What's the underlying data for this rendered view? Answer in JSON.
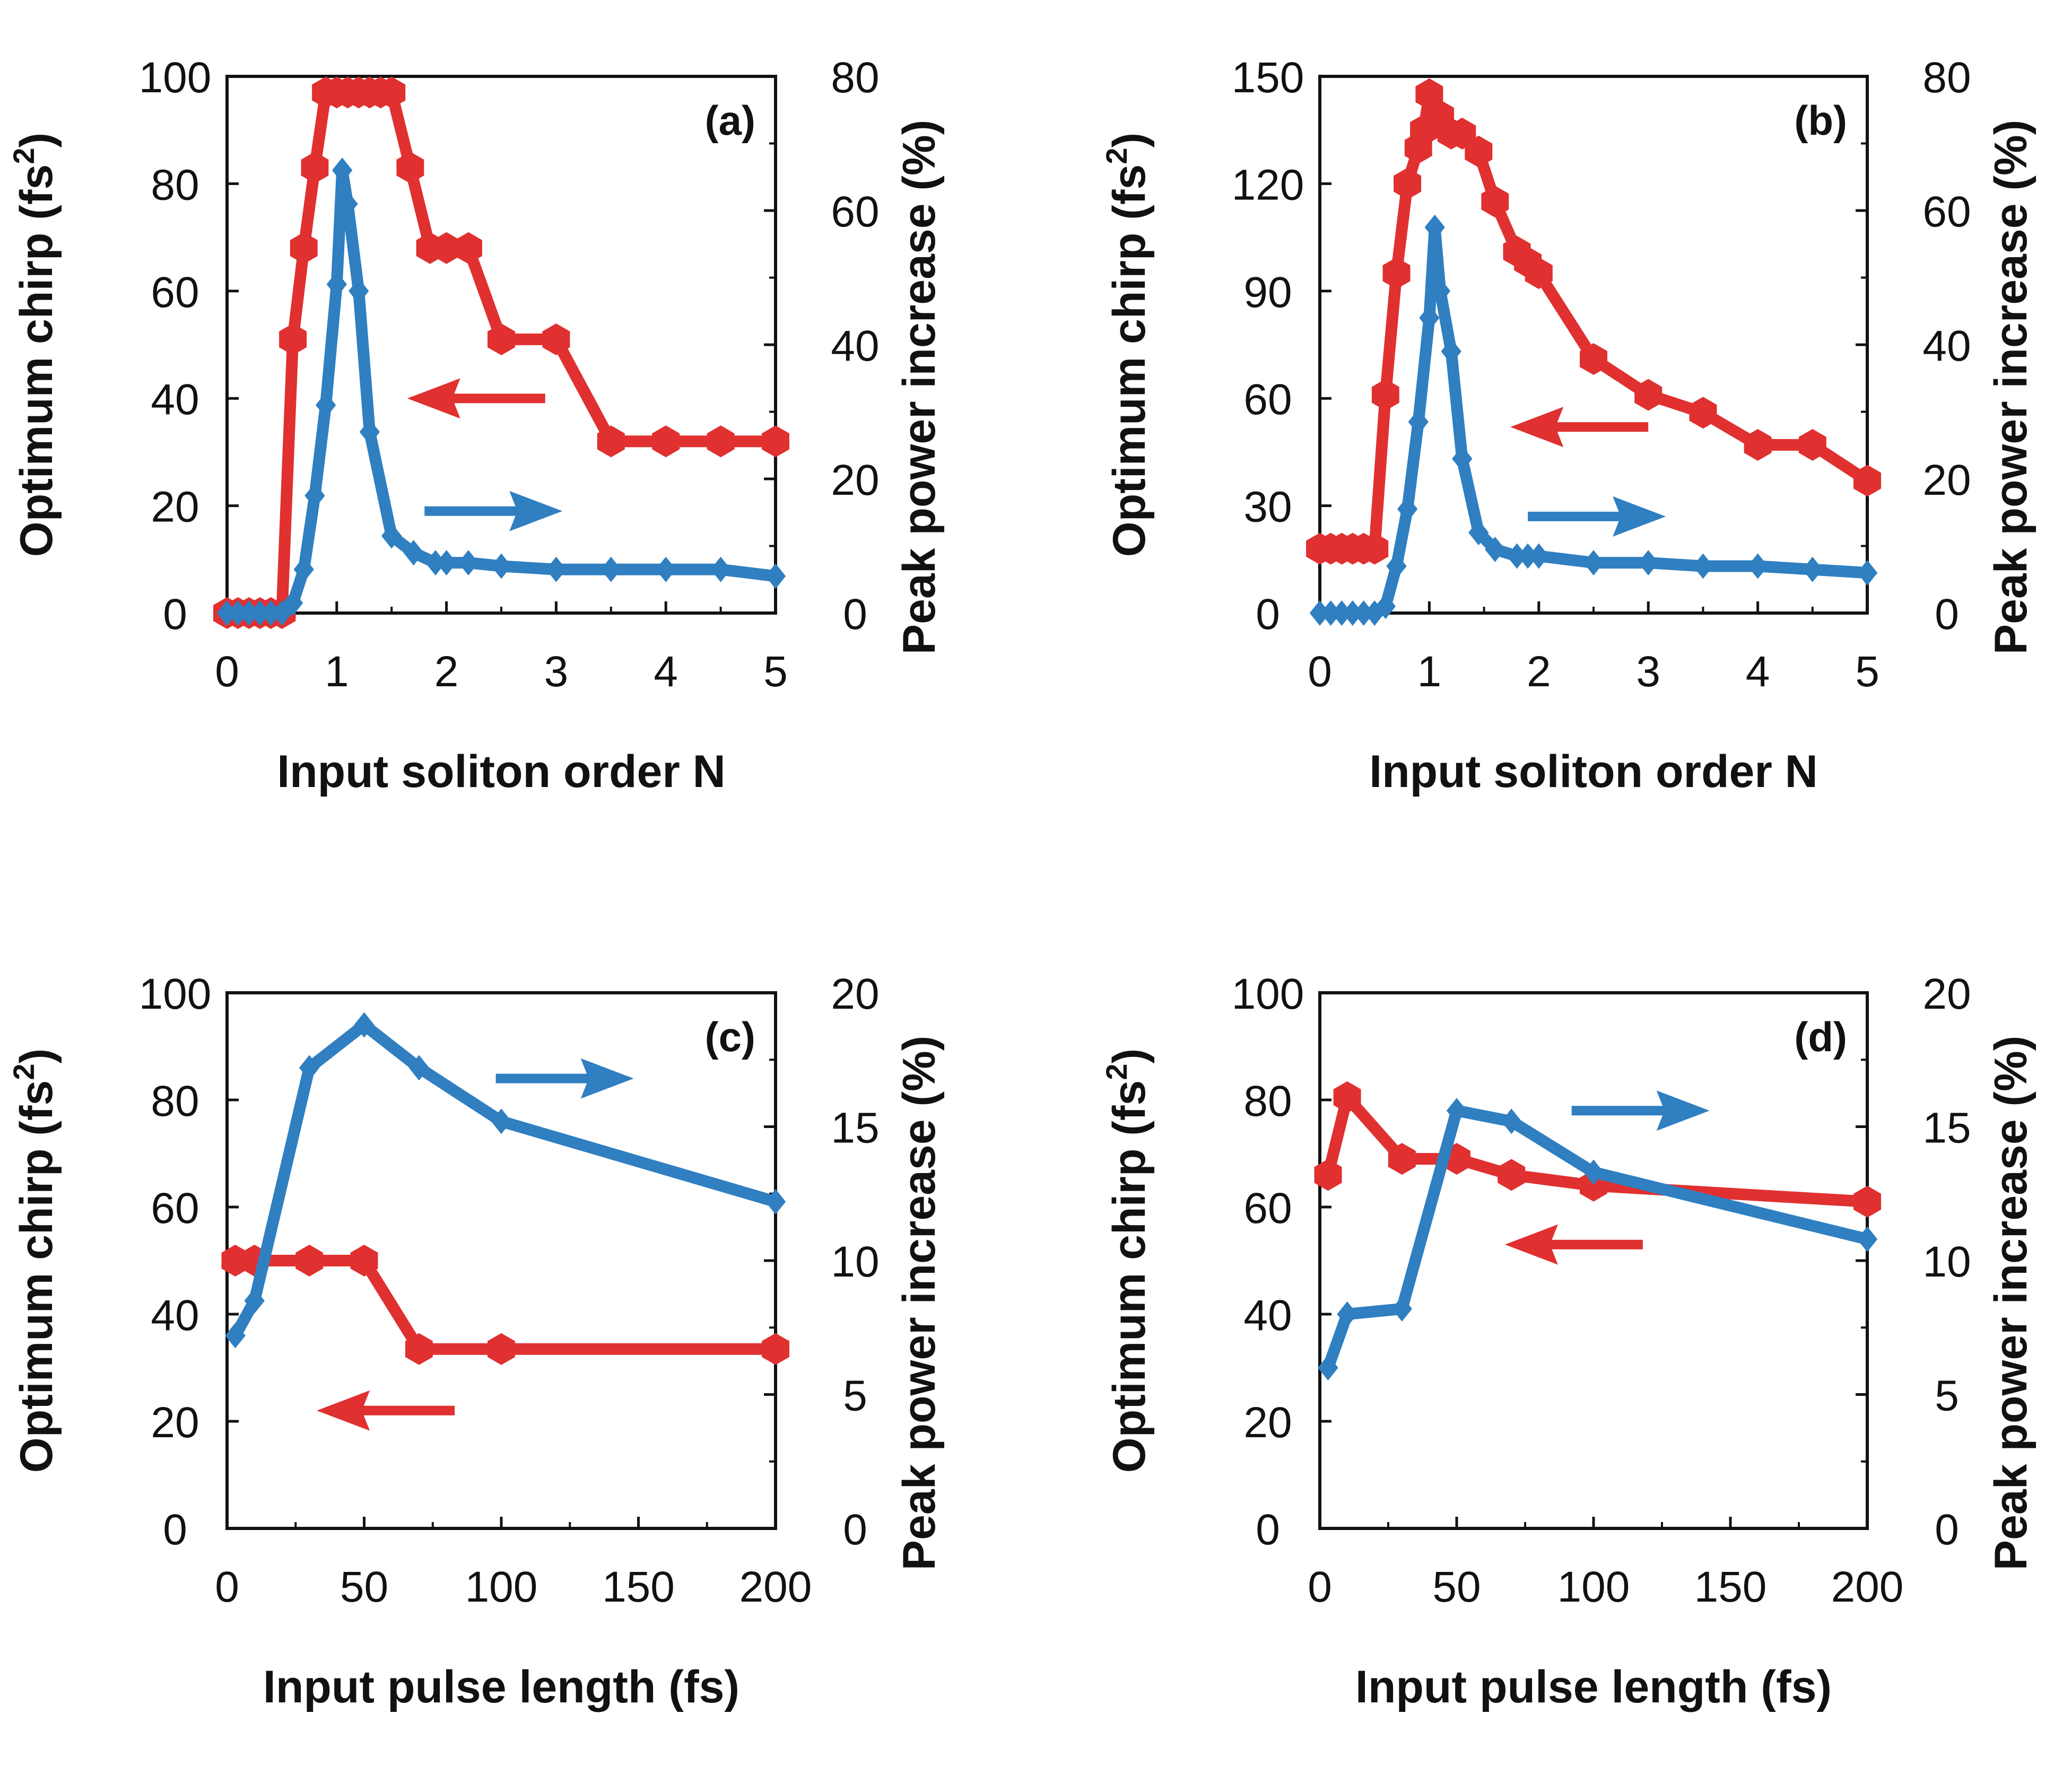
{
  "colors": {
    "red": "#e03030",
    "blue": "#2f7fc1",
    "axis": "#111111"
  },
  "chart_data": [
    {
      "type": "line",
      "panel_label": "(a)",
      "xlabel": "Input soliton order N",
      "ylabel": "Optimum chirp (fs2)",
      "ylabel_parts": {
        "main": "Optimum chirp (fs",
        "sup": "2",
        "close": ")"
      },
      "y2label": "Peak power increase (%)",
      "xlim": [
        0,
        5
      ],
      "xticks": [
        0,
        1,
        2,
        3,
        4,
        5
      ],
      "ylim": [
        0,
        100
      ],
      "yticks": [
        0,
        20,
        40,
        60,
        80,
        100
      ],
      "y2lim": [
        0,
        80
      ],
      "y2ticks": [
        0,
        20,
        40,
        60,
        80
      ],
      "series": [
        {
          "name": "Optimum chirp",
          "axis": "left",
          "color": "#e03030",
          "marker": "hexagon",
          "x": [
            0.0,
            0.1,
            0.2,
            0.3,
            0.4,
            0.5,
            0.6,
            0.7,
            0.8,
            0.9,
            1.0,
            1.1,
            1.2,
            1.3,
            1.4,
            1.5,
            1.67,
            1.85,
            2.0,
            2.2,
            2.5,
            3.0,
            3.5,
            4.0,
            4.5,
            5.0
          ],
          "y": [
            0,
            0,
            0,
            0,
            0,
            0,
            51,
            68,
            83,
            97,
            97,
            97,
            97,
            97,
            97,
            97,
            83,
            68,
            68,
            68,
            51,
            51,
            32,
            32,
            32,
            32
          ]
        },
        {
          "name": "Peak power increase",
          "axis": "right",
          "color": "#2f7fc1",
          "marker": "diamond",
          "x": [
            0.0,
            0.1,
            0.2,
            0.3,
            0.4,
            0.5,
            0.6,
            0.7,
            0.8,
            0.9,
            1.0,
            1.05,
            1.1,
            1.2,
            1.3,
            1.5,
            1.7,
            1.9,
            2.0,
            2.2,
            2.5,
            3.0,
            3.5,
            4.0,
            4.5,
            5.0
          ],
          "y": [
            0,
            0,
            0,
            0,
            0,
            0,
            1.5,
            6.5,
            17.5,
            31,
            49,
            66,
            61,
            48,
            27,
            11.5,
            9,
            7.5,
            7.5,
            7.5,
            7,
            6.5,
            6.5,
            6.5,
            6.5,
            5.5
          ]
        }
      ],
      "annotations": [
        {
          "type": "arrow",
          "direction": "left",
          "color": "#e03030",
          "near_series": "Optimum chirp",
          "anchor_x": 2.9,
          "anchor_y_left": 40
        },
        {
          "type": "arrow",
          "direction": "right",
          "color": "#2f7fc1",
          "near_series": "Peak power increase",
          "anchor_x": 1.8,
          "anchor_y_left": 19
        }
      ]
    },
    {
      "type": "line",
      "panel_label": "(b)",
      "xlabel": "Input soliton order N",
      "ylabel": "Optimum chirp (fs2)",
      "ylabel_parts": {
        "main": "Optimum chirp (fs",
        "sup": "2",
        "close": ")"
      },
      "y2label": "Peak power increase (%)",
      "xlim": [
        0,
        5
      ],
      "xticks": [
        0,
        1,
        2,
        3,
        4,
        5
      ],
      "ylim": [
        0,
        150
      ],
      "yticks": [
        0,
        30,
        60,
        90,
        120,
        150
      ],
      "y2lim": [
        0,
        80
      ],
      "y2ticks": [
        0,
        20,
        40,
        60,
        80
      ],
      "series": [
        {
          "name": "Optimum chirp",
          "axis": "left",
          "color": "#e03030",
          "marker": "hexagon",
          "x": [
            0.0,
            0.1,
            0.2,
            0.3,
            0.4,
            0.5,
            0.6,
            0.7,
            0.8,
            0.9,
            0.95,
            1.0,
            1.1,
            1.2,
            1.3,
            1.45,
            1.6,
            1.8,
            1.9,
            2.0,
            2.5,
            3.0,
            3.5,
            4.0,
            4.5,
            5.0
          ],
          "y": [
            18,
            18,
            18,
            18,
            18,
            18,
            61,
            95,
            120,
            130,
            135,
            145,
            139,
            134,
            134,
            129,
            115,
            101,
            98,
            95,
            71,
            61,
            56,
            47,
            47,
            37
          ]
        },
        {
          "name": "Peak power increase",
          "axis": "right",
          "color": "#2f7fc1",
          "marker": "diamond",
          "x": [
            0.0,
            0.1,
            0.2,
            0.3,
            0.4,
            0.5,
            0.6,
            0.7,
            0.8,
            0.9,
            1.0,
            1.05,
            1.1,
            1.2,
            1.3,
            1.45,
            1.6,
            1.8,
            1.9,
            2.0,
            2.5,
            3.0,
            3.5,
            4.0,
            4.5,
            5.0
          ],
          "y": [
            0,
            0,
            0,
            0,
            0,
            0,
            1,
            7,
            15.5,
            28.5,
            44,
            57.5,
            48,
            39,
            23,
            12,
            9.5,
            8.5,
            8.5,
            8.5,
            7.5,
            7.5,
            7,
            7,
            6.5,
            6
          ]
        }
      ],
      "annotations": [
        {
          "type": "arrow",
          "direction": "left",
          "color": "#e03030",
          "near_series": "Optimum chirp",
          "anchor_x": 3.0,
          "anchor_y_left": 52
        },
        {
          "type": "arrow",
          "direction": "right",
          "color": "#2f7fc1",
          "near_series": "Peak power increase",
          "anchor_x": 1.9,
          "anchor_y_left": 27
        }
      ]
    },
    {
      "type": "line",
      "panel_label": "(c)",
      "xlabel": "Input pulse length (fs)",
      "ylabel": "Optimum chirp (fs2)",
      "ylabel_parts": {
        "main": "Optimum chirp (fs",
        "sup": "2",
        "close": ")"
      },
      "y2label": "Peak power increase (%)",
      "xlim": [
        0,
        200
      ],
      "xticks": [
        0,
        50,
        100,
        150,
        200
      ],
      "ylim": [
        0,
        100
      ],
      "yticks": [
        0,
        20,
        40,
        60,
        80,
        100
      ],
      "y2lim": [
        0,
        20
      ],
      "y2ticks": [
        0,
        5,
        10,
        15,
        20
      ],
      "series": [
        {
          "name": "Optimum chirp",
          "axis": "left",
          "color": "#e03030",
          "marker": "hexagon",
          "x": [
            3,
            10,
            30,
            50,
            70,
            100,
            200
          ],
          "y": [
            50,
            50,
            50,
            50,
            33.5,
            33.5,
            33.5
          ]
        },
        {
          "name": "Peak power increase",
          "axis": "right",
          "color": "#2f7fc1",
          "marker": "diamond",
          "x": [
            3,
            10,
            30,
            50,
            70,
            100,
            200
          ],
          "y": [
            7.2,
            8.5,
            17.2,
            18.8,
            17.2,
            15.2,
            12.2
          ]
        }
      ],
      "annotations": [
        {
          "type": "arrow",
          "direction": "left",
          "color": "#e03030",
          "near_series": "Optimum chirp",
          "anchor_x": 83,
          "anchor_y_left": 22
        },
        {
          "type": "arrow",
          "direction": "right",
          "color": "#2f7fc1",
          "near_series": "Peak power increase",
          "anchor_x": 98,
          "anchor_y_left": 84
        }
      ]
    },
    {
      "type": "line",
      "panel_label": "(d)",
      "xlabel": "Input pulse length (fs)",
      "ylabel": "Optimum chirp (fs2)",
      "ylabel_parts": {
        "main": "Optimum chirp (fs",
        "sup": "2",
        "close": ")"
      },
      "y2label": "Peak power increase (%)",
      "xlim": [
        0,
        200
      ],
      "xticks": [
        0,
        50,
        100,
        150,
        200
      ],
      "ylim": [
        0,
        100
      ],
      "yticks": [
        0,
        20,
        40,
        60,
        80,
        100
      ],
      "y2lim": [
        0,
        20
      ],
      "y2ticks": [
        0,
        5,
        10,
        15,
        20
      ],
      "series": [
        {
          "name": "Optimum chirp",
          "axis": "left",
          "color": "#e03030",
          "marker": "hexagon",
          "x": [
            3,
            10,
            30,
            50,
            70,
            100,
            200
          ],
          "y": [
            66,
            80.5,
            69,
            69,
            66,
            64,
            61
          ]
        },
        {
          "name": "Peak power increase",
          "axis": "right",
          "color": "#2f7fc1",
          "marker": "diamond",
          "x": [
            3,
            10,
            30,
            50,
            70,
            100,
            200
          ],
          "y": [
            6,
            8,
            8.2,
            15.6,
            15.2,
            13.3,
            10.8
          ]
        }
      ],
      "annotations": [
        {
          "type": "arrow",
          "direction": "left",
          "color": "#e03030",
          "near_series": "Optimum chirp",
          "anchor_x": 118,
          "anchor_y_left": 53
        },
        {
          "type": "arrow",
          "direction": "right",
          "color": "#2f7fc1",
          "near_series": "Peak power increase",
          "anchor_x": 92,
          "anchor_y_left": 78
        }
      ]
    }
  ]
}
